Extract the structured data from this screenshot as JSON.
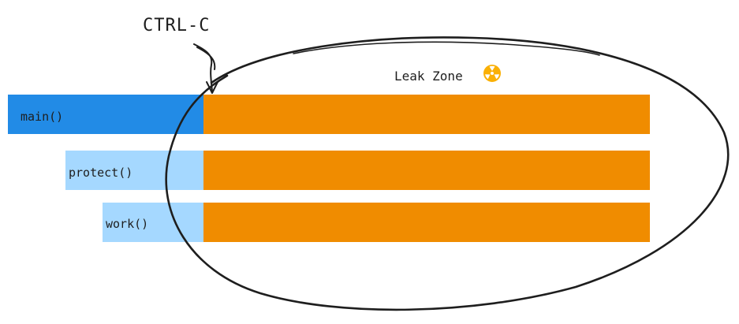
{
  "diagram": {
    "annotation": "CTRL-C",
    "zone_label": "Leak Zone",
    "zone_icon": "radioactive-icon",
    "calls": [
      {
        "label": "main()",
        "color": "#228be6"
      },
      {
        "label": "protect()",
        "color": "#a5d8ff"
      },
      {
        "label": "work()",
        "color": "#a5d8ff"
      }
    ],
    "leak_color": "#f08c00",
    "icon_color": "#fab005"
  }
}
